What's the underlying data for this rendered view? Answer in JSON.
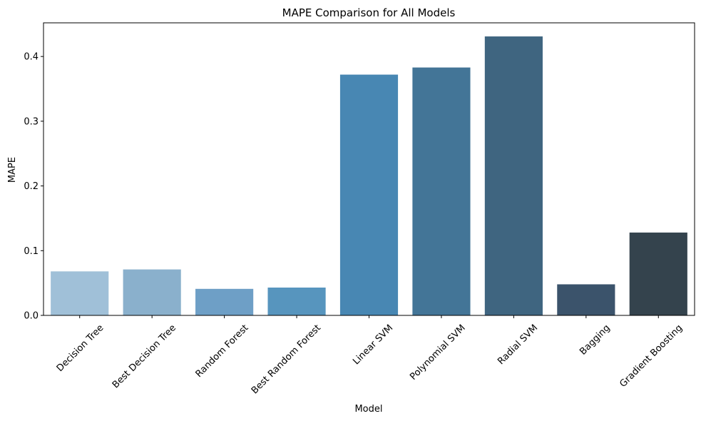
{
  "chart_data": {
    "type": "bar",
    "title": "MAPE Comparison for All Models",
    "xlabel": "Model",
    "ylabel": "MAPE",
    "categories": [
      "Decision Tree",
      "Best Decision Tree",
      "Random Forest",
      "Best Random Forest",
      "Linear SVM",
      "Polynomial SVM",
      "Radial SVM",
      "Bagging",
      "Gradient Boosting"
    ],
    "values": [
      0.068,
      0.071,
      0.041,
      0.043,
      0.372,
      0.383,
      0.431,
      0.048,
      0.128
    ],
    "colors": [
      "#a0c0d8",
      "#8ab0cc",
      "#6e9fc6",
      "#5795be",
      "#4887b3",
      "#437597",
      "#3f6580",
      "#3b536b",
      "#34434d"
    ],
    "ylim": [
      0,
      0.452
    ],
    "yticks": [
      "0.0",
      "0.1",
      "0.2",
      "0.3",
      "0.4"
    ],
    "ytick_values": [
      0,
      0.1,
      0.2,
      0.3,
      0.4
    ],
    "grid": false,
    "legend": "none"
  }
}
